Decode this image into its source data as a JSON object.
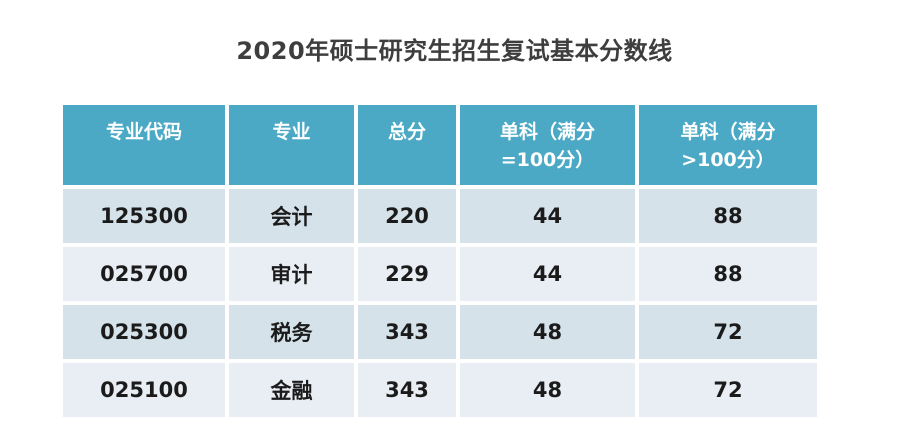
{
  "chart_data": {
    "type": "table",
    "title": "2020年硕士研究生招生复试基本分数线",
    "columns": [
      "专业代码",
      "专业",
      "总分",
      "单科（满分\n=100分）",
      "单科（满分\n>100分）"
    ],
    "rows": [
      [
        "125300",
        "会计",
        "220",
        "44",
        "88"
      ],
      [
        "025700",
        "审计",
        "229",
        "44",
        "88"
      ],
      [
        "025300",
        "税务",
        "343",
        "48",
        "72"
      ],
      [
        "025100",
        "金融",
        "343",
        "48",
        "72"
      ]
    ],
    "layout_hints": {
      "header_position": "top",
      "grid": "white gaps between cells",
      "row_striping": "alternating light blue shades"
    }
  },
  "colors": {
    "header-bg": "#4ba9c5",
    "header-text": "#ffffff",
    "row-dark": "#d5e2ea",
    "row-light": "#e9eef4",
    "title-text": "#3e3e3e",
    "cell-text": "#1b1b1b"
  }
}
